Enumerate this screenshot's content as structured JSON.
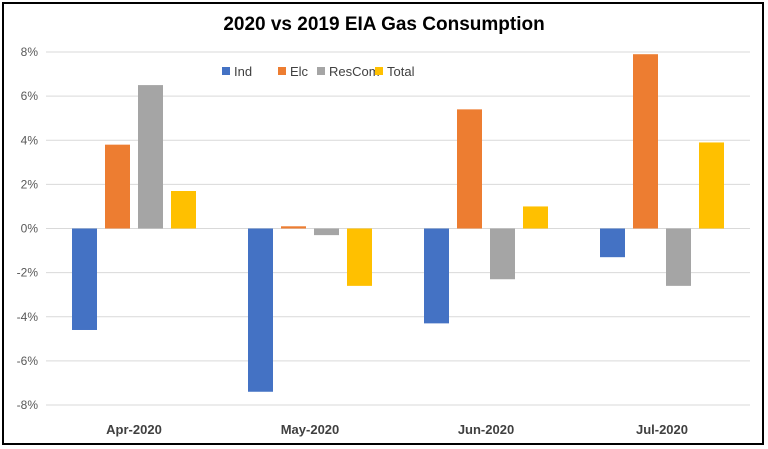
{
  "chart_data": {
    "type": "bar",
    "title": "2020 vs 2019 EIA Gas Consumption",
    "categories": [
      "Apr-2020",
      "May-2020",
      "Jun-2020",
      "Jul-2020"
    ],
    "series": [
      {
        "name": "Ind",
        "color": "#4472C4",
        "values": [
          -4.6,
          -7.4,
          -4.3,
          -1.3
        ]
      },
      {
        "name": "Elc",
        "color": "#ED7D31",
        "values": [
          3.8,
          0.1,
          5.4,
          7.9
        ]
      },
      {
        "name": "ResCom",
        "color": "#A5A5A5",
        "values": [
          6.5,
          -0.3,
          -2.3,
          -2.6
        ]
      },
      {
        "name": "Total",
        "color": "#FFC000",
        "values": [
          1.7,
          -2.6,
          1.0,
          3.9
        ]
      }
    ],
    "ylim": [
      -8,
      8
    ],
    "yticks": [
      "8%",
      "6%",
      "4%",
      "2%",
      "0%",
      "-2%",
      "-4%",
      "-6%",
      "-8%"
    ],
    "ytick_values": [
      8,
      6,
      4,
      2,
      0,
      -2,
      -4,
      -6,
      -8
    ],
    "grid": true,
    "legend": "top-center"
  }
}
